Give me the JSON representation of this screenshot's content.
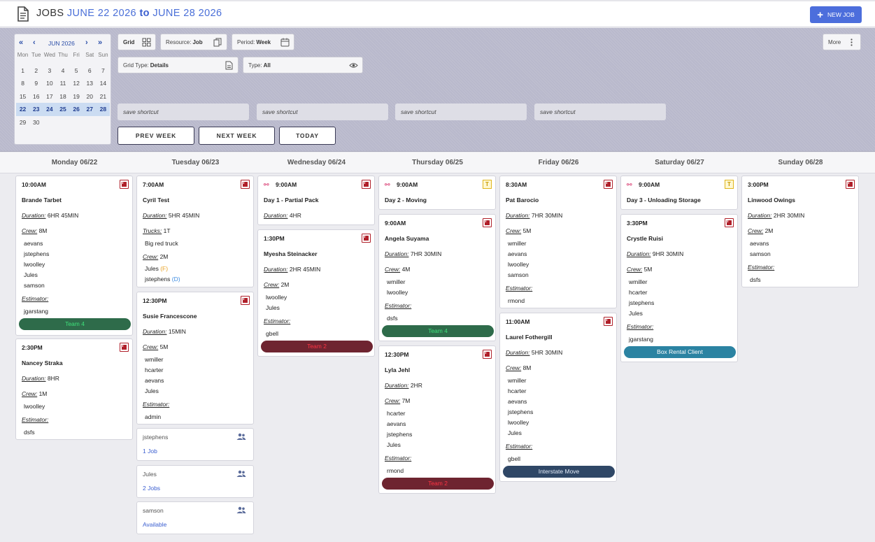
{
  "header": {
    "title_prefix": "JOBS ",
    "date_start": "JUNE 22 2026",
    "to_word": "to",
    "date_end": "JUNE 28 2026",
    "new_job_label": "NEW JOB"
  },
  "calendar": {
    "month_label": "JUN 2026",
    "weekdays": [
      "Mon",
      "Tue",
      "Wed",
      "Thu",
      "Fri",
      "Sat",
      "Sun"
    ],
    "days": [
      "1",
      "2",
      "3",
      "4",
      "5",
      "6",
      "7",
      "8",
      "9",
      "10",
      "11",
      "12",
      "13",
      "14",
      "15",
      "16",
      "17",
      "18",
      "19",
      "20",
      "21",
      "22",
      "23",
      "24",
      "25",
      "26",
      "27",
      "28",
      "29",
      "30"
    ],
    "selected_days": [
      "22",
      "23",
      "24",
      "25",
      "26",
      "27",
      "28"
    ]
  },
  "toolbar": {
    "grid_label": "Grid",
    "resource_label": "Resource:",
    "resource_value": "Job",
    "period_label": "Period:",
    "period_value": "Week",
    "more_label": "More",
    "grid_type_label": "Grid Type:",
    "grid_type_value": "Details",
    "type_label": "Type:",
    "type_value": "All",
    "shortcuts": [
      "save shortcut",
      "save shortcut",
      "save shortcut",
      "save shortcut"
    ],
    "prev_week": "PREV WEEK",
    "next_week": "NEXT WEEK",
    "today": "TODAY"
  },
  "days": [
    "Monday 06/22",
    "Tuesday 06/23",
    "Wednesday 06/24",
    "Thursday 06/25",
    "Friday 06/26",
    "Saturday 06/27",
    "Sunday 06/28"
  ],
  "labels": {
    "duration": "Duration:",
    "crew": "Crew:",
    "trucks": "Trucks:",
    "estimator": "Estimator:"
  },
  "jobs": {
    "mon1": {
      "time": "10:00AM",
      "name": "Brande Tarbet",
      "duration": "6HR 45MIN",
      "crew_count": "8M",
      "crew": [
        "aevans",
        "jstephens",
        "lwoolley",
        "Jules",
        "samson"
      ],
      "estimator": "jgarstang",
      "team": "Team 4"
    },
    "mon2": {
      "time": "2:30PM",
      "name": "Nancey Straka",
      "duration": "8HR",
      "crew_count": "1M",
      "crew": [
        "lwoolley"
      ],
      "estimator": "dsfs"
    },
    "tue1": {
      "time": "7:00AM",
      "name": "Cyril Test",
      "duration": "5HR 45MIN",
      "trucks_count": "1T",
      "trucks": [
        "Big red truck"
      ],
      "crew_count": "2M",
      "crew": [
        "Jules",
        "jstephens"
      ],
      "crew_tags": [
        "(F)",
        "(D)"
      ]
    },
    "tue2": {
      "time": "12:30PM",
      "name": "Susie Francescone",
      "duration": "15MIN",
      "crew_count": "5M",
      "crew": [
        "wmiller",
        "hcarter",
        "aevans",
        "Jules"
      ],
      "estimator": "admin"
    },
    "wed1": {
      "time": "9:00AM",
      "name": "Day 1 - Partial Pack",
      "duration": "4HR"
    },
    "wed2": {
      "time": "1:30PM",
      "name": "Myesha Steinacker",
      "duration": "2HR 45MIN",
      "crew_count": "2M",
      "crew": [
        "lwoolley",
        "Jules"
      ],
      "estimator": "gbell",
      "team": "Team 2"
    },
    "thu1": {
      "time": "9:00AM",
      "name": "Day 2 - Moving"
    },
    "thu2": {
      "time": "9:00AM",
      "name": "Angela Suyama",
      "duration": "7HR 30MIN",
      "crew_count": "4M",
      "crew": [
        "wmiller",
        "lwoolley"
      ],
      "estimator": "dsfs",
      "team": "Team 4"
    },
    "thu3": {
      "time": "12:30PM",
      "name": "Lyla Jehl",
      "duration": "2HR",
      "crew_count": "7M",
      "crew": [
        "hcarter",
        "aevans",
        "jstephens",
        "Jules"
      ],
      "estimator": "rmond",
      "team": "Team 2"
    },
    "fri1": {
      "time": "8:30AM",
      "name": "Pat Barocio",
      "duration": "7HR 30MIN",
      "crew_count": "5M",
      "crew": [
        "wmiller",
        "aevans",
        "lwoolley",
        "samson"
      ],
      "estimator": "rmond"
    },
    "fri2": {
      "time": "11:00AM",
      "name": "Laurel Fothergill",
      "duration": "5HR 30MIN",
      "crew_count": "8M",
      "crew": [
        "wmiller",
        "hcarter",
        "aevans",
        "jstephens",
        "lwoolley",
        "Jules"
      ],
      "estimator": "gbell",
      "team": "Interstate Move"
    },
    "sat1": {
      "time": "9:00AM",
      "name": "Day 3 - Unloading Storage"
    },
    "sat2": {
      "time": "3:30PM",
      "name": "Crystle Ruisi",
      "duration": "9HR 30MIN",
      "crew_count": "5M",
      "crew": [
        "wmiller",
        "hcarter",
        "jstephens",
        "Jules"
      ],
      "estimator": "jgarstang",
      "team": "Box Rental Client"
    },
    "sun1": {
      "time": "3:00PM",
      "name": "Linwood Owings",
      "duration": "2HR 30MIN",
      "crew_count": "2M",
      "crew": [
        "aevans",
        "samson"
      ],
      "estimator": "dsfs"
    }
  },
  "availability": [
    {
      "name": "jstephens",
      "status": "1 Job"
    },
    {
      "name": "Jules",
      "status": "2 Jobs"
    },
    {
      "name": "samson",
      "status": "Available"
    }
  ],
  "colors": {
    "accent": "#4c6edc",
    "team_green": "#2e6b4a",
    "team_green_text": "#3ee07a",
    "team_red": "#6e2430",
    "team_red_text": "#ff3344",
    "team_blue": "#2b83a2",
    "team_navy": "#2f4766"
  }
}
